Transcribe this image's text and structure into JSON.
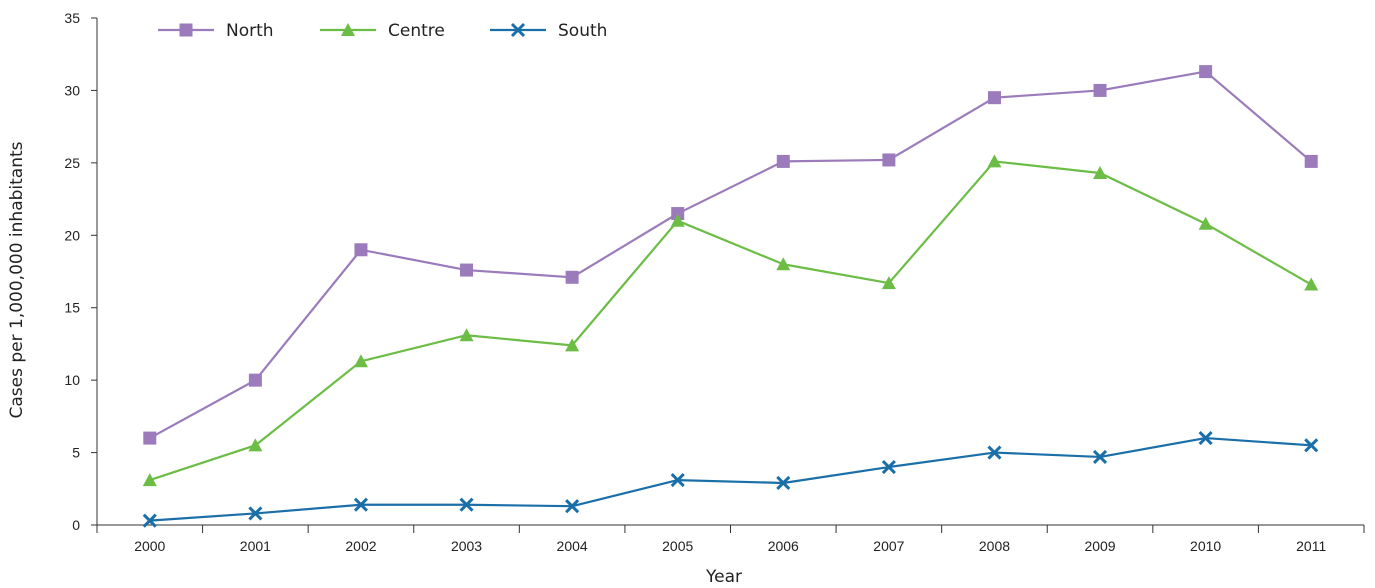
{
  "chart_data": {
    "type": "line",
    "xlabel": "Year",
    "ylabel": "Cases per 1,000,000 inhabitants",
    "ylim": [
      0,
      35
    ],
    "yticks": [
      0,
      5,
      10,
      15,
      20,
      25,
      30,
      35
    ],
    "categories": [
      "2000",
      "2001",
      "2002",
      "2003",
      "2004",
      "2005",
      "2006",
      "2007",
      "2008",
      "2009",
      "2010",
      "2011"
    ],
    "grid": false,
    "legend_position": "top-left",
    "series": [
      {
        "name": "North",
        "color": "#9b7bbb",
        "marker": "square",
        "values": [
          6.0,
          10.0,
          19.0,
          17.6,
          17.1,
          21.5,
          25.1,
          25.2,
          29.5,
          30.0,
          31.3,
          25.1
        ]
      },
      {
        "name": "Centre",
        "color": "#6cbd45",
        "marker": "triangle",
        "values": [
          3.1,
          5.5,
          11.3,
          13.1,
          12.4,
          21.0,
          18.0,
          16.7,
          25.1,
          24.3,
          20.8,
          16.6
        ]
      },
      {
        "name": "South",
        "color": "#1a6fa8",
        "marker": "cross",
        "values": [
          0.3,
          0.8,
          1.4,
          1.4,
          1.3,
          3.1,
          2.9,
          4.0,
          5.0,
          4.7,
          6.0,
          5.5
        ]
      }
    ]
  }
}
